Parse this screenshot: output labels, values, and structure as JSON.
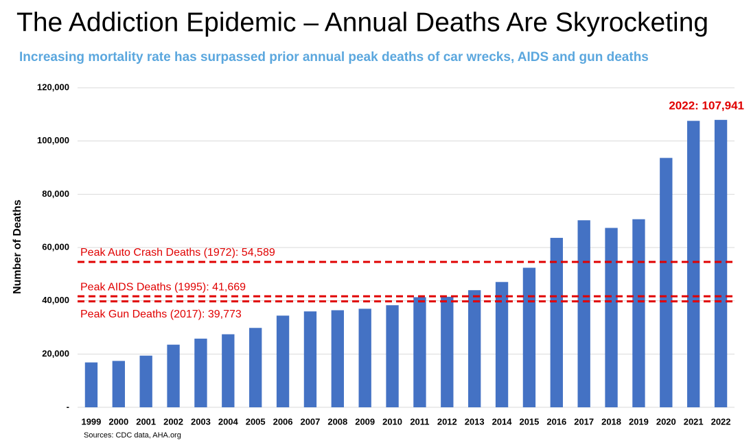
{
  "chart_data": {
    "type": "bar",
    "title": "The Addiction Epidemic – Annual Deaths Are Skyrocketing",
    "subtitle": "Increasing mortality rate has surpassed prior annual peak deaths of car wrecks, AIDS and gun deaths",
    "y_label": "Number of Deaths",
    "source": "Sources: CDC data, AHA.org",
    "categories": [
      "1999",
      "2000",
      "2001",
      "2002",
      "2003",
      "2004",
      "2005",
      "2006",
      "2007",
      "2008",
      "2009",
      "2010",
      "2011",
      "2012",
      "2013",
      "2014",
      "2015",
      "2016",
      "2017",
      "2018",
      "2019",
      "2020",
      "2021",
      "2022"
    ],
    "values": [
      16849,
      17415,
      19394,
      23518,
      25785,
      27424,
      29813,
      34425,
      36010,
      36450,
      37004,
      38329,
      41340,
      41502,
      43982,
      47055,
      52404,
      63632,
      70237,
      67367,
      70630,
      93655,
      107573,
      107941
    ],
    "color": "#4472c4",
    "ylim": [
      0,
      120000
    ],
    "yticks": [
      {
        "value": 0,
        "label": "-"
      },
      {
        "value": 20000,
        "label": "20,000"
      },
      {
        "value": 40000,
        "label": "40,000"
      },
      {
        "value": 60000,
        "label": "60,000"
      },
      {
        "value": 80000,
        "label": "80,000"
      },
      {
        "value": 100000,
        "label": "100,000"
      },
      {
        "value": 120000,
        "label": "120,000"
      }
    ],
    "grid": true,
    "reference_lines": [
      {
        "label": "Peak Auto Crash Deaths (1972): 54,589",
        "value": 54589,
        "color": "#e00000"
      },
      {
        "label": "Peak AIDS Deaths (1995): 41,669",
        "value": 41669,
        "color": "#e00000"
      },
      {
        "label": "Peak Gun Deaths (2017): 39,773",
        "value": 39773,
        "color": "#e00000"
      }
    ],
    "annotations": [
      {
        "text": "2022: 107,941",
        "color": "#e00000"
      }
    ]
  }
}
